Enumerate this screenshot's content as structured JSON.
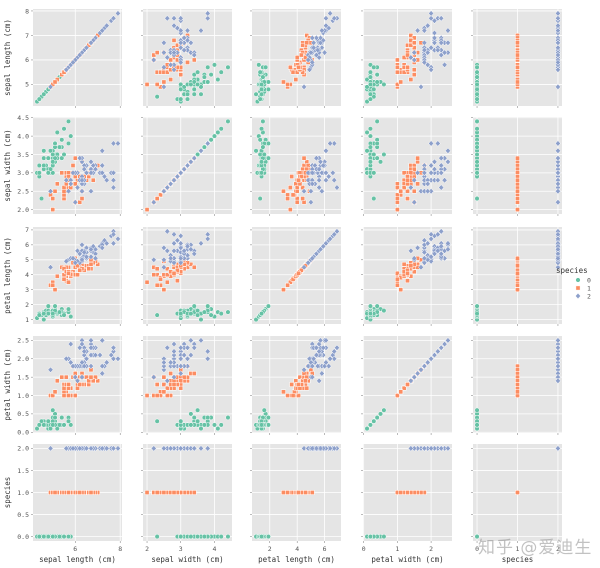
{
  "chart_data": {
    "type": "scatter",
    "kind": "pairplot",
    "variables": [
      "sepal length (cm)",
      "sepal width (cm)",
      "petal length (cm)",
      "petal width (cm)",
      "species"
    ],
    "ranges": [
      [
        4.12,
        8.08
      ],
      [
        1.88,
        4.52
      ],
      [
        0.705,
        7.195
      ],
      [
        -0.02,
        2.62
      ],
      [
        -0.1,
        2.1
      ]
    ],
    "x_ticks": [
      [
        6,
        8
      ],
      [
        2,
        3,
        4
      ],
      [
        2,
        4,
        6
      ],
      [
        0,
        1,
        2
      ],
      [
        0,
        1,
        2
      ]
    ],
    "y_ticks": [
      [
        5,
        6,
        7,
        8
      ],
      [
        2.0,
        2.5,
        3.0,
        3.5,
        4.0,
        4.5
      ],
      [
        1,
        2,
        3,
        4,
        5,
        6,
        7
      ],
      [
        0.0,
        0.5,
        1.0,
        1.5,
        2.0,
        2.5
      ],
      [
        0.0,
        0.5,
        1.0,
        1.5,
        2.0
      ]
    ],
    "grid": true,
    "background": "#e5e5e5",
    "legend": {
      "title": "species",
      "placement": "right",
      "entries": [
        {
          "label": "0",
          "color": "#66c2a5",
          "marker": "circle"
        },
        {
          "label": "1",
          "color": "#fc8d62",
          "marker": "square"
        },
        {
          "label": "2",
          "color": "#8da0cb",
          "marker": "diamond"
        }
      ]
    },
    "series": [
      {
        "name": "0",
        "species": 0,
        "points": [
          [
            5.1,
            3.5,
            1.4,
            0.2
          ],
          [
            4.9,
            3.0,
            1.4,
            0.2
          ],
          [
            4.7,
            3.2,
            1.3,
            0.2
          ],
          [
            4.6,
            3.1,
            1.5,
            0.2
          ],
          [
            5.0,
            3.6,
            1.4,
            0.2
          ],
          [
            5.4,
            3.9,
            1.7,
            0.4
          ],
          [
            4.6,
            3.4,
            1.4,
            0.3
          ],
          [
            5.0,
            3.4,
            1.5,
            0.2
          ],
          [
            4.4,
            2.9,
            1.4,
            0.2
          ],
          [
            4.9,
            3.1,
            1.5,
            0.1
          ],
          [
            5.4,
            3.7,
            1.5,
            0.2
          ],
          [
            4.8,
            3.4,
            1.6,
            0.2
          ],
          [
            4.8,
            3.0,
            1.4,
            0.1
          ],
          [
            4.3,
            3.0,
            1.1,
            0.1
          ],
          [
            5.8,
            4.0,
            1.2,
            0.2
          ],
          [
            5.7,
            4.4,
            1.5,
            0.4
          ],
          [
            5.4,
            3.9,
            1.3,
            0.4
          ],
          [
            5.1,
            3.5,
            1.4,
            0.3
          ],
          [
            5.7,
            3.8,
            1.7,
            0.3
          ],
          [
            5.1,
            3.8,
            1.5,
            0.3
          ],
          [
            5.4,
            3.4,
            1.7,
            0.2
          ],
          [
            5.1,
            3.7,
            1.5,
            0.4
          ],
          [
            4.6,
            3.6,
            1.0,
            0.2
          ],
          [
            5.1,
            3.3,
            1.7,
            0.5
          ],
          [
            4.8,
            3.4,
            1.9,
            0.2
          ],
          [
            5.0,
            3.0,
            1.6,
            0.2
          ],
          [
            5.0,
            3.4,
            1.6,
            0.4
          ],
          [
            5.2,
            3.5,
            1.5,
            0.2
          ],
          [
            5.2,
            3.4,
            1.4,
            0.2
          ],
          [
            4.7,
            3.2,
            1.6,
            0.2
          ],
          [
            4.8,
            3.1,
            1.6,
            0.2
          ],
          [
            5.4,
            3.4,
            1.5,
            0.4
          ],
          [
            5.2,
            4.1,
            1.5,
            0.1
          ],
          [
            5.5,
            4.2,
            1.4,
            0.2
          ],
          [
            4.9,
            3.1,
            1.5,
            0.2
          ],
          [
            5.0,
            3.2,
            1.2,
            0.2
          ],
          [
            5.5,
            3.5,
            1.3,
            0.2
          ],
          [
            4.9,
            3.6,
            1.4,
            0.1
          ],
          [
            4.4,
            3.0,
            1.3,
            0.2
          ],
          [
            5.1,
            3.4,
            1.5,
            0.2
          ],
          [
            5.0,
            3.5,
            1.3,
            0.3
          ],
          [
            4.5,
            2.3,
            1.3,
            0.3
          ],
          [
            4.4,
            3.2,
            1.3,
            0.2
          ],
          [
            5.0,
            3.5,
            1.6,
            0.6
          ],
          [
            5.1,
            3.8,
            1.9,
            0.4
          ],
          [
            4.8,
            3.0,
            1.4,
            0.3
          ],
          [
            5.1,
            3.8,
            1.6,
            0.2
          ],
          [
            4.6,
            3.2,
            1.4,
            0.2
          ],
          [
            5.3,
            3.7,
            1.5,
            0.2
          ],
          [
            5.0,
            3.3,
            1.4,
            0.2
          ]
        ]
      },
      {
        "name": "1",
        "species": 1,
        "points": [
          [
            7.0,
            3.2,
            4.7,
            1.4
          ],
          [
            6.4,
            3.2,
            4.5,
            1.5
          ],
          [
            6.9,
            3.1,
            4.9,
            1.5
          ],
          [
            5.5,
            2.3,
            4.0,
            1.3
          ],
          [
            6.5,
            2.8,
            4.6,
            1.5
          ],
          [
            5.7,
            2.8,
            4.5,
            1.3
          ],
          [
            6.3,
            3.3,
            4.7,
            1.6
          ],
          [
            4.9,
            2.4,
            3.3,
            1.0
          ],
          [
            6.6,
            2.9,
            4.6,
            1.3
          ],
          [
            5.2,
            2.7,
            3.9,
            1.4
          ],
          [
            5.0,
            2.0,
            3.5,
            1.0
          ],
          [
            5.9,
            3.0,
            4.2,
            1.5
          ],
          [
            6.0,
            2.2,
            4.0,
            1.0
          ],
          [
            6.1,
            2.9,
            4.7,
            1.4
          ],
          [
            5.6,
            2.9,
            3.6,
            1.3
          ],
          [
            6.7,
            3.1,
            4.4,
            1.4
          ],
          [
            5.6,
            3.0,
            4.5,
            1.5
          ],
          [
            5.8,
            2.7,
            4.1,
            1.0
          ],
          [
            6.2,
            2.2,
            4.5,
            1.5
          ],
          [
            5.6,
            2.5,
            3.9,
            1.1
          ],
          [
            5.9,
            3.2,
            4.8,
            1.8
          ],
          [
            6.1,
            2.8,
            4.0,
            1.3
          ],
          [
            6.3,
            2.5,
            4.9,
            1.5
          ],
          [
            6.1,
            2.8,
            4.7,
            1.2
          ],
          [
            6.4,
            2.9,
            4.3,
            1.3
          ],
          [
            6.6,
            3.0,
            4.4,
            1.4
          ],
          [
            6.8,
            2.8,
            4.8,
            1.4
          ],
          [
            6.7,
            3.0,
            5.0,
            1.7
          ],
          [
            6.0,
            2.9,
            4.5,
            1.5
          ],
          [
            5.7,
            2.6,
            3.5,
            1.0
          ],
          [
            5.5,
            2.4,
            3.8,
            1.1
          ],
          [
            5.5,
            2.4,
            3.7,
            1.0
          ],
          [
            5.8,
            2.7,
            3.9,
            1.2
          ],
          [
            6.0,
            2.7,
            5.1,
            1.6
          ],
          [
            5.4,
            3.0,
            4.5,
            1.5
          ],
          [
            6.0,
            3.4,
            4.5,
            1.6
          ],
          [
            6.7,
            3.1,
            4.7,
            1.5
          ],
          [
            6.3,
            2.3,
            4.4,
            1.3
          ],
          [
            5.6,
            3.0,
            4.1,
            1.3
          ],
          [
            5.5,
            2.5,
            4.0,
            1.3
          ],
          [
            5.5,
            2.6,
            4.4,
            1.2
          ],
          [
            6.1,
            3.0,
            4.6,
            1.4
          ],
          [
            5.8,
            2.6,
            4.0,
            1.2
          ],
          [
            5.0,
            2.3,
            3.3,
            1.0
          ],
          [
            5.6,
            2.7,
            4.2,
            1.3
          ],
          [
            5.7,
            3.0,
            4.2,
            1.2
          ],
          [
            5.7,
            2.9,
            4.2,
            1.3
          ],
          [
            6.2,
            2.9,
            4.3,
            1.3
          ],
          [
            5.1,
            2.5,
            3.0,
            1.1
          ],
          [
            5.7,
            2.8,
            4.1,
            1.3
          ]
        ]
      },
      {
        "name": "2",
        "species": 2,
        "points": [
          [
            6.3,
            3.3,
            6.0,
            2.5
          ],
          [
            5.8,
            2.7,
            5.1,
            1.9
          ],
          [
            7.1,
            3.0,
            5.9,
            2.1
          ],
          [
            6.3,
            2.9,
            5.6,
            1.8
          ],
          [
            6.5,
            3.0,
            5.8,
            2.2
          ],
          [
            7.6,
            3.0,
            6.6,
            2.1
          ],
          [
            4.9,
            2.5,
            4.5,
            1.7
          ],
          [
            7.3,
            2.9,
            6.3,
            1.8
          ],
          [
            6.7,
            2.5,
            5.8,
            1.8
          ],
          [
            7.2,
            3.6,
            6.1,
            2.5
          ],
          [
            6.5,
            3.2,
            5.1,
            2.0
          ],
          [
            6.4,
            2.7,
            5.3,
            1.9
          ],
          [
            6.8,
            3.0,
            5.5,
            2.1
          ],
          [
            5.7,
            2.5,
            5.0,
            2.0
          ],
          [
            5.8,
            2.8,
            5.1,
            2.4
          ],
          [
            6.4,
            3.2,
            5.3,
            2.3
          ],
          [
            6.5,
            3.0,
            5.5,
            1.8
          ],
          [
            7.7,
            3.8,
            6.7,
            2.2
          ],
          [
            7.7,
            2.6,
            6.9,
            2.3
          ],
          [
            6.0,
            2.2,
            5.0,
            1.5
          ],
          [
            6.9,
            3.2,
            5.7,
            2.3
          ],
          [
            5.6,
            2.8,
            4.9,
            2.0
          ],
          [
            7.7,
            2.8,
            6.7,
            2.0
          ],
          [
            6.3,
            2.7,
            4.9,
            1.8
          ],
          [
            6.7,
            3.3,
            5.7,
            2.1
          ],
          [
            7.2,
            3.2,
            6.0,
            1.8
          ],
          [
            6.2,
            2.8,
            4.8,
            1.8
          ],
          [
            6.1,
            3.0,
            4.9,
            1.8
          ],
          [
            6.4,
            2.8,
            5.6,
            2.1
          ],
          [
            7.2,
            3.0,
            5.8,
            1.6
          ],
          [
            7.4,
            2.8,
            6.1,
            1.9
          ],
          [
            7.9,
            3.8,
            6.4,
            2.0
          ],
          [
            6.4,
            2.8,
            5.6,
            2.2
          ],
          [
            6.3,
            2.8,
            5.1,
            1.5
          ],
          [
            6.1,
            2.6,
            5.6,
            1.4
          ],
          [
            7.7,
            3.0,
            6.1,
            2.3
          ],
          [
            6.3,
            3.4,
            5.6,
            2.4
          ],
          [
            6.4,
            3.1,
            5.5,
            1.8
          ],
          [
            6.0,
            3.0,
            4.8,
            1.8
          ],
          [
            6.9,
            3.1,
            5.4,
            2.1
          ],
          [
            6.7,
            3.1,
            5.6,
            2.4
          ],
          [
            6.9,
            3.1,
            5.1,
            2.3
          ],
          [
            5.8,
            2.7,
            5.1,
            1.9
          ],
          [
            6.8,
            3.2,
            5.9,
            2.3
          ],
          [
            6.7,
            3.3,
            5.7,
            2.5
          ],
          [
            6.7,
            3.0,
            5.2,
            2.3
          ],
          [
            6.3,
            2.5,
            5.0,
            1.9
          ],
          [
            6.5,
            3.0,
            5.2,
            2.0
          ],
          [
            6.2,
            3.4,
            5.4,
            2.3
          ],
          [
            5.9,
            3.0,
            5.1,
            1.8
          ]
        ]
      }
    ]
  },
  "watermark": "知乎 @爱迪生"
}
